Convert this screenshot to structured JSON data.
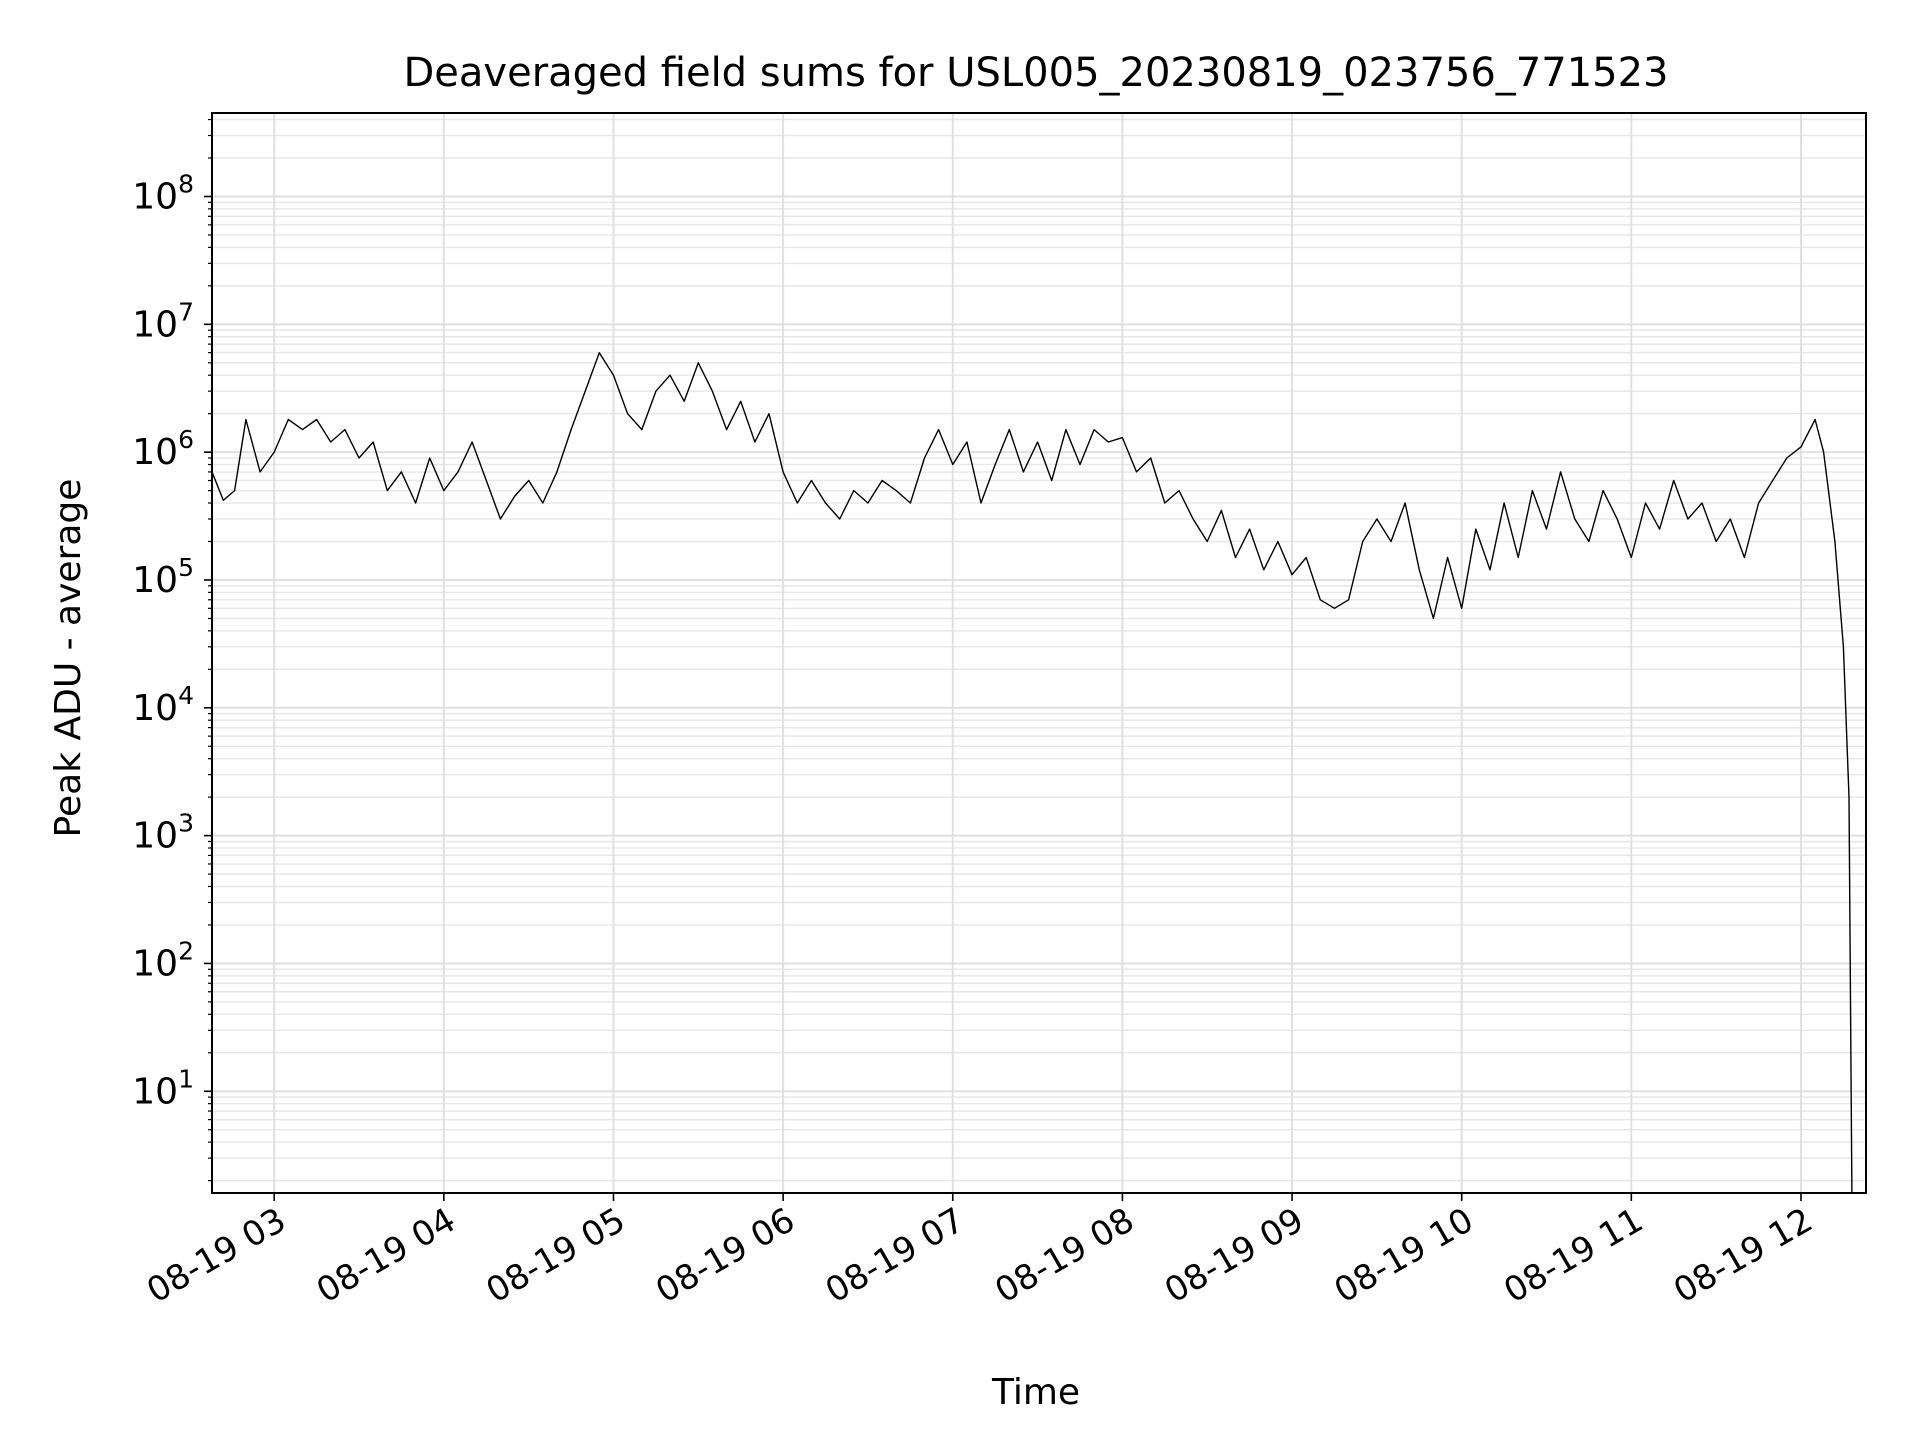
{
  "chart_data": {
    "type": "line",
    "title": "Deaveraged field sums for USL005_20230819_023756_771523",
    "xlabel": "Time",
    "ylabel": "Peak ADU - average",
    "yscale": "log",
    "xlim": [
      "2023-08-19 02:38",
      "2023-08-19 12:23"
    ],
    "ylim": [
      1.6,
      450000000
    ],
    "grid": true,
    "x_ticks": [
      "08-19 03",
      "08-19 04",
      "08-19 05",
      "08-19 06",
      "08-19 07",
      "08-19 08",
      "08-19 09",
      "08-19 10",
      "08-19 11",
      "08-19 12"
    ],
    "y_ticks": [
      {
        "value": 10,
        "base": "10",
        "exp": "1"
      },
      {
        "value": 100,
        "base": "10",
        "exp": "2"
      },
      {
        "value": 1000,
        "base": "10",
        "exp": "3"
      },
      {
        "value": 10000,
        "base": "10",
        "exp": "4"
      },
      {
        "value": 100000,
        "base": "10",
        "exp": "5"
      },
      {
        "value": 1000000,
        "base": "10",
        "exp": "6"
      },
      {
        "value": 10000000,
        "base": "10",
        "exp": "7"
      },
      {
        "value": 100000000,
        "base": "10",
        "exp": "8"
      }
    ],
    "series": [
      {
        "color": "#000000",
        "points": [
          [
            "2023-08-19 02:38",
            700000
          ],
          [
            "2023-08-19 02:42",
            420000
          ],
          [
            "2023-08-19 02:46",
            500000
          ],
          [
            "2023-08-19 02:50",
            1800000
          ],
          [
            "2023-08-19 02:55",
            700000
          ],
          [
            "2023-08-19 03:00",
            1000000
          ],
          [
            "2023-08-19 03:05",
            1800000
          ],
          [
            "2023-08-19 03:10",
            1500000
          ],
          [
            "2023-08-19 03:15",
            1800000
          ],
          [
            "2023-08-19 03:20",
            1200000
          ],
          [
            "2023-08-19 03:25",
            1500000
          ],
          [
            "2023-08-19 03:30",
            900000
          ],
          [
            "2023-08-19 03:35",
            1200000
          ],
          [
            "2023-08-19 03:40",
            500000
          ],
          [
            "2023-08-19 03:45",
            700000
          ],
          [
            "2023-08-19 03:50",
            400000
          ],
          [
            "2023-08-19 03:55",
            900000
          ],
          [
            "2023-08-19 04:00",
            500000
          ],
          [
            "2023-08-19 04:05",
            700000
          ],
          [
            "2023-08-19 04:10",
            1200000
          ],
          [
            "2023-08-19 04:15",
            600000
          ],
          [
            "2023-08-19 04:20",
            300000
          ],
          [
            "2023-08-19 04:25",
            450000
          ],
          [
            "2023-08-19 04:30",
            600000
          ],
          [
            "2023-08-19 04:35",
            400000
          ],
          [
            "2023-08-19 04:40",
            700000
          ],
          [
            "2023-08-19 04:45",
            1500000
          ],
          [
            "2023-08-19 04:50",
            3000000
          ],
          [
            "2023-08-19 04:55",
            6000000
          ],
          [
            "2023-08-19 05:00",
            4000000
          ],
          [
            "2023-08-19 05:05",
            2000000
          ],
          [
            "2023-08-19 05:10",
            1500000
          ],
          [
            "2023-08-19 05:15",
            3000000
          ],
          [
            "2023-08-19 05:20",
            4000000
          ],
          [
            "2023-08-19 05:25",
            2500000
          ],
          [
            "2023-08-19 05:30",
            5000000
          ],
          [
            "2023-08-19 05:35",
            3000000
          ],
          [
            "2023-08-19 05:40",
            1500000
          ],
          [
            "2023-08-19 05:45",
            2500000
          ],
          [
            "2023-08-19 05:50",
            1200000
          ],
          [
            "2023-08-19 05:55",
            2000000
          ],
          [
            "2023-08-19 06:00",
            700000
          ],
          [
            "2023-08-19 06:05",
            400000
          ],
          [
            "2023-08-19 06:10",
            600000
          ],
          [
            "2023-08-19 06:15",
            400000
          ],
          [
            "2023-08-19 06:20",
            300000
          ],
          [
            "2023-08-19 06:25",
            500000
          ],
          [
            "2023-08-19 06:30",
            400000
          ],
          [
            "2023-08-19 06:35",
            600000
          ],
          [
            "2023-08-19 06:40",
            500000
          ],
          [
            "2023-08-19 06:45",
            400000
          ],
          [
            "2023-08-19 06:50",
            900000
          ],
          [
            "2023-08-19 06:55",
            1500000
          ],
          [
            "2023-08-19 07:00",
            800000
          ],
          [
            "2023-08-19 07:05",
            1200000
          ],
          [
            "2023-08-19 07:10",
            400000
          ],
          [
            "2023-08-19 07:15",
            800000
          ],
          [
            "2023-08-19 07:20",
            1500000
          ],
          [
            "2023-08-19 07:25",
            700000
          ],
          [
            "2023-08-19 07:30",
            1200000
          ],
          [
            "2023-08-19 07:35",
            600000
          ],
          [
            "2023-08-19 07:40",
            1500000
          ],
          [
            "2023-08-19 07:45",
            800000
          ],
          [
            "2023-08-19 07:50",
            1500000
          ],
          [
            "2023-08-19 07:55",
            1200000
          ],
          [
            "2023-08-19 08:00",
            1300000
          ],
          [
            "2023-08-19 08:05",
            700000
          ],
          [
            "2023-08-19 08:10",
            900000
          ],
          [
            "2023-08-19 08:15",
            400000
          ],
          [
            "2023-08-19 08:20",
            500000
          ],
          [
            "2023-08-19 08:25",
            300000
          ],
          [
            "2023-08-19 08:30",
            200000
          ],
          [
            "2023-08-19 08:35",
            350000
          ],
          [
            "2023-08-19 08:40",
            150000
          ],
          [
            "2023-08-19 08:45",
            250000
          ],
          [
            "2023-08-19 08:50",
            120000
          ],
          [
            "2023-08-19 08:55",
            200000
          ],
          [
            "2023-08-19 09:00",
            110000
          ],
          [
            "2023-08-19 09:05",
            150000
          ],
          [
            "2023-08-19 09:10",
            70000
          ],
          [
            "2023-08-19 09:15",
            60000
          ],
          [
            "2023-08-19 09:20",
            70000
          ],
          [
            "2023-08-19 09:25",
            200000
          ],
          [
            "2023-08-19 09:30",
            300000
          ],
          [
            "2023-08-19 09:35",
            200000
          ],
          [
            "2023-08-19 09:40",
            400000
          ],
          [
            "2023-08-19 09:45",
            120000
          ],
          [
            "2023-08-19 09:50",
            50000
          ],
          [
            "2023-08-19 09:55",
            150000
          ],
          [
            "2023-08-19 10:00",
            60000
          ],
          [
            "2023-08-19 10:05",
            250000
          ],
          [
            "2023-08-19 10:10",
            120000
          ],
          [
            "2023-08-19 10:15",
            400000
          ],
          [
            "2023-08-19 10:20",
            150000
          ],
          [
            "2023-08-19 10:25",
            500000
          ],
          [
            "2023-08-19 10:30",
            250000
          ],
          [
            "2023-08-19 10:35",
            700000
          ],
          [
            "2023-08-19 10:40",
            300000
          ],
          [
            "2023-08-19 10:45",
            200000
          ],
          [
            "2023-08-19 10:50",
            500000
          ],
          [
            "2023-08-19 10:55",
            300000
          ],
          [
            "2023-08-19 11:00",
            150000
          ],
          [
            "2023-08-19 11:05",
            400000
          ],
          [
            "2023-08-19 11:10",
            250000
          ],
          [
            "2023-08-19 11:15",
            600000
          ],
          [
            "2023-08-19 11:20",
            300000
          ],
          [
            "2023-08-19 11:25",
            400000
          ],
          [
            "2023-08-19 11:30",
            200000
          ],
          [
            "2023-08-19 11:35",
            300000
          ],
          [
            "2023-08-19 11:40",
            150000
          ],
          [
            "2023-08-19 11:45",
            400000
          ],
          [
            "2023-08-19 11:50",
            600000
          ],
          [
            "2023-08-19 11:55",
            900000
          ],
          [
            "2023-08-19 12:00",
            1100000
          ],
          [
            "2023-08-19 12:05",
            1800000
          ],
          [
            "2023-08-19 12:08",
            1000000
          ],
          [
            "2023-08-19 12:12",
            200000
          ],
          [
            "2023-08-19 12:15",
            30000
          ],
          [
            "2023-08-19 12:17",
            2000
          ],
          [
            "2023-08-19 12:18",
            1.6
          ]
        ]
      }
    ]
  }
}
